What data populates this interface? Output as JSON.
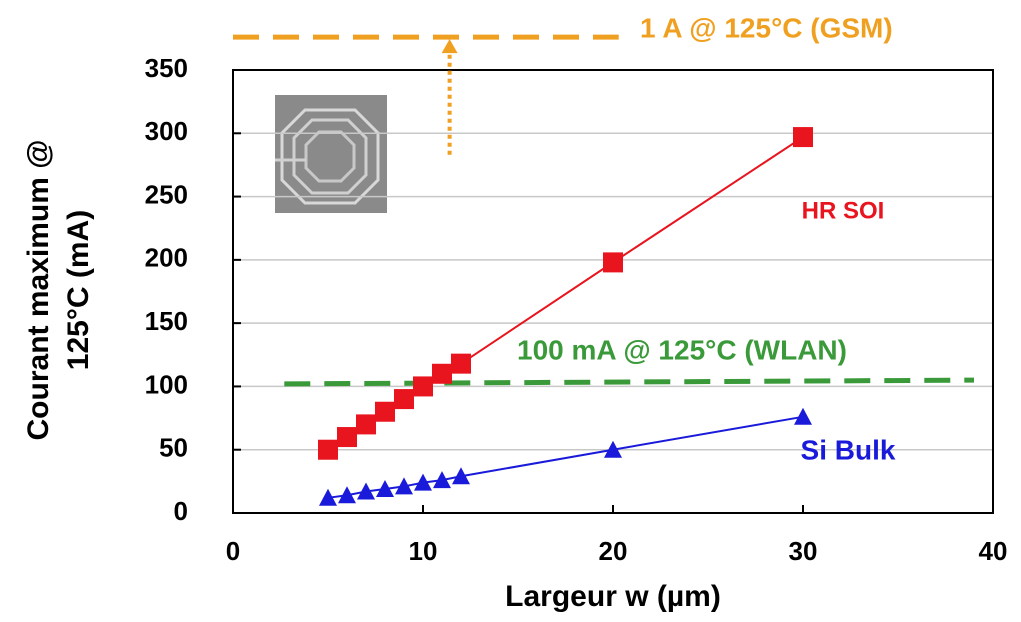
{
  "chart_data": {
    "type": "line",
    "xlabel": "Largeur w  (µm)",
    "ylabel": [
      "Courant maximum @",
      "125°C (mA)"
    ],
    "xlim": [
      0,
      40
    ],
    "xticks": [
      0,
      10,
      20,
      30,
      40
    ],
    "ylim": [
      0,
      350
    ],
    "yticks": [
      0,
      50,
      100,
      150,
      200,
      250,
      300,
      350
    ],
    "grid": true,
    "series": [
      {
        "name": "HR SOI",
        "color": "#e8141e",
        "marker": "square",
        "x": [
          5,
          6,
          7,
          8,
          9,
          10,
          11,
          12,
          20,
          30
        ],
        "values": [
          50,
          60,
          70,
          80,
          90,
          100,
          110,
          118,
          198,
          297
        ]
      },
      {
        "name": "Si Bulk",
        "color": "#1a1adb",
        "marker": "triangle",
        "x": [
          5,
          6,
          7,
          8,
          9,
          10,
          11,
          12,
          20,
          30
        ],
        "values": [
          12,
          14,
          17,
          19,
          21,
          24,
          26,
          29,
          50,
          76
        ]
      }
    ],
    "annotations": [
      {
        "text": "1 A @ 125°C (GSM)",
        "color": "#f0a020",
        "x": [
          0,
          20.3
        ],
        "y": [
          376,
          376
        ]
      },
      {
        "text": "100 mA @ 125°C (WLAN)",
        "color": "#3a9a3a",
        "x": [
          2.7,
          39
        ],
        "y": [
          102,
          105
        ]
      }
    ],
    "arrow": {
      "color": "#f0a020",
      "x": 11.4,
      "y": [
        283,
        376
      ]
    }
  }
}
